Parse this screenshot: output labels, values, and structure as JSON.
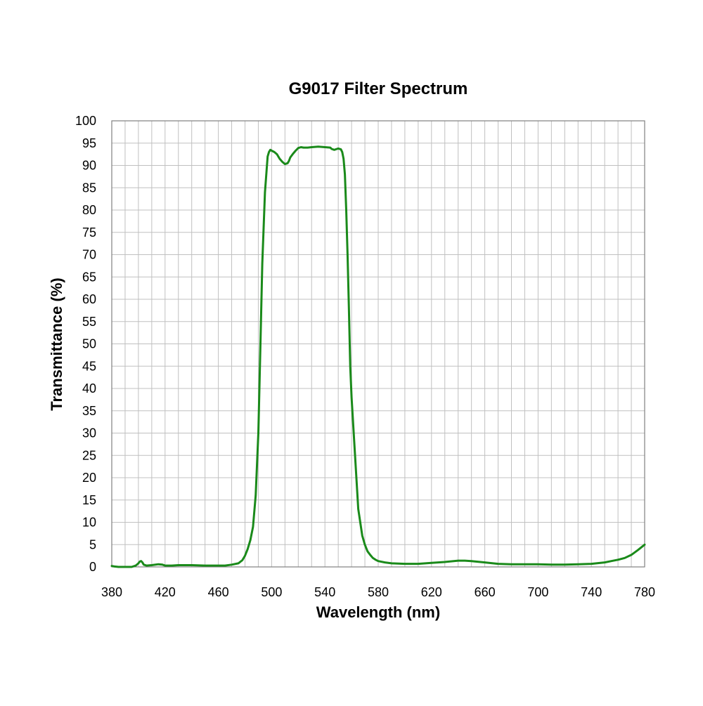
{
  "chart_data": {
    "type": "line",
    "title": "G9017 Filter Spectrum",
    "xlabel": "Wavelength (nm)",
    "ylabel": "Transmittance (%)",
    "xlim": [
      380,
      780
    ],
    "ylim": [
      0,
      100
    ],
    "x_ticks": [
      380,
      420,
      460,
      500,
      540,
      580,
      620,
      660,
      700,
      740,
      780
    ],
    "y_ticks": [
      0,
      5,
      10,
      15,
      20,
      25,
      30,
      35,
      40,
      45,
      50,
      55,
      60,
      65,
      70,
      75,
      80,
      85,
      90,
      95,
      100
    ],
    "x_minor_step": 10,
    "y_minor_step": 5,
    "grid": true,
    "legend": "none",
    "colors": {
      "line": "#1a8a1a",
      "grid": "#c0c0c0",
      "frame": "#808080"
    },
    "series": [
      {
        "x": [
          380,
          382,
          385,
          390,
          395,
          398,
          400,
          401,
          402,
          403,
          404,
          406,
          410,
          415,
          418,
          420,
          425,
          430,
          440,
          450,
          460,
          465,
          470,
          475,
          478,
          480,
          482,
          484,
          486,
          488,
          490,
          491,
          492,
          493,
          494,
          495,
          496,
          497,
          498,
          499,
          500,
          502,
          504,
          506,
          508,
          510,
          512,
          513,
          514,
          516,
          518,
          520,
          522,
          524,
          525,
          527,
          530,
          535,
          540,
          544,
          545,
          547,
          549,
          550,
          552,
          553,
          554,
          555,
          556,
          557,
          558,
          559,
          560,
          561,
          562,
          563,
          564,
          565,
          566,
          567,
          568,
          570,
          572,
          574,
          576,
          578,
          580,
          585,
          590,
          600,
          610,
          620,
          630,
          640,
          645,
          650,
          660,
          670,
          680,
          700,
          710,
          720,
          730,
          740,
          750,
          755,
          760,
          765,
          770,
          775,
          780
        ],
        "y": [
          0.2,
          0.1,
          0,
          0,
          0,
          0.3,
          0.8,
          1.2,
          1.3,
          1.0,
          0.5,
          0.3,
          0.4,
          0.6,
          0.5,
          0.3,
          0.3,
          0.4,
          0.4,
          0.3,
          0.3,
          0.3,
          0.5,
          0.8,
          1.5,
          2.5,
          4,
          6,
          9,
          16,
          30,
          42,
          55,
          68,
          76,
          84,
          88,
          92,
          93,
          93.5,
          93.3,
          93,
          92.5,
          91.5,
          90.8,
          90.3,
          90.5,
          91,
          91.8,
          92.6,
          93.3,
          93.9,
          94.1,
          94.0,
          94.0,
          94.0,
          94.1,
          94.2,
          94.1,
          94.0,
          93.7,
          93.5,
          93.7,
          93.8,
          93.6,
          93.0,
          91.5,
          88,
          80,
          70,
          58,
          45,
          38,
          33,
          28,
          23,
          18,
          13,
          11,
          9,
          7,
          5,
          3.5,
          2.7,
          2.0,
          1.6,
          1.3,
          1.0,
          0.8,
          0.7,
          0.7,
          0.9,
          1.1,
          1.4,
          1.4,
          1.3,
          1.0,
          0.7,
          0.6,
          0.6,
          0.5,
          0.5,
          0.6,
          0.7,
          1.0,
          1.3,
          1.6,
          2.0,
          2.7,
          3.8,
          5.0
        ]
      }
    ]
  }
}
